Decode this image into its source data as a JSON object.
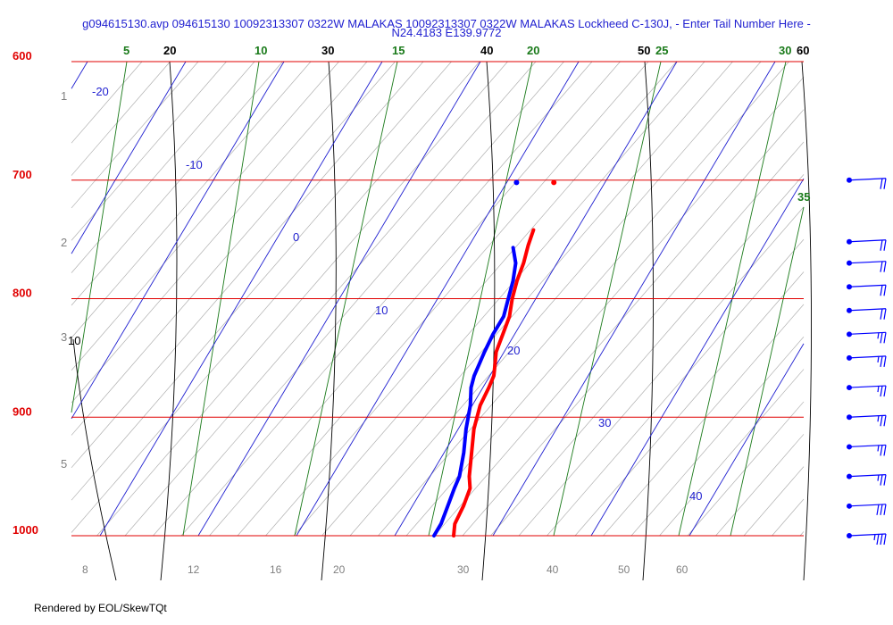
{
  "title": {
    "line1": "g094615130.avp 094615130 10092313307 0322W MALAKAS 10092313307 0322W MALAKAS Lockheed C-130J, - Enter Tail Number Here -",
    "line2": "N24.4183 E139.9772"
  },
  "footer": "Rendered by EOL/SkewTQt",
  "colors": {
    "isobar": "#e00000",
    "dry_adiabat": "#000000",
    "moist_adiabat": "#1a7a1a",
    "isotherm": "#1f1fd0",
    "mixing_ratio": "#888888",
    "temperature": "#ff0000",
    "dewpoint": "#0000ff",
    "height_label": "#808080"
  },
  "chart_data": {
    "type": "skew-t",
    "pressure_range": [
      1000,
      600
    ],
    "isobars": [
      "600",
      "700",
      "800",
      "900",
      "1000"
    ],
    "height_labels": [
      "1",
      "2",
      "3",
      "5"
    ],
    "isotherm_labels": [
      "-20",
      "-10",
      "0",
      "10",
      "20",
      "30",
      "40"
    ],
    "dry_adiabat_labels_top": [
      "20",
      "30",
      "40",
      "50",
      "60"
    ],
    "dry_adiabat_label_left": "10",
    "moist_adiabat_labels_top": [
      "5",
      "10",
      "15",
      "20",
      "25",
      "30"
    ],
    "moist_adiabat_label_right": "35",
    "mixing_ratio_labels": [
      "8",
      "12",
      "16",
      "20",
      "30",
      "40",
      "50",
      "60"
    ],
    "temperature_profile": [
      {
        "p": 1000,
        "t": 26.0
      },
      {
        "p": 990,
        "t": 25.4
      },
      {
        "p": 975,
        "t": 25.2
      },
      {
        "p": 960,
        "t": 24.8
      },
      {
        "p": 950,
        "t": 24.0
      },
      {
        "p": 930,
        "t": 22.8
      },
      {
        "p": 910,
        "t": 21.6
      },
      {
        "p": 890,
        "t": 20.8
      },
      {
        "p": 875,
        "t": 20.6
      },
      {
        "p": 865,
        "t": 20.4
      },
      {
        "p": 855,
        "t": 19.8
      },
      {
        "p": 845,
        "t": 19.2
      },
      {
        "p": 830,
        "t": 18.8
      },
      {
        "p": 815,
        "t": 18.4
      },
      {
        "p": 800,
        "t": 17.6
      },
      {
        "p": 785,
        "t": 17.0
      },
      {
        "p": 770,
        "t": 16.6
      },
      {
        "p": 755,
        "t": 16.0
      },
      {
        "p": 742,
        "t": 15.6
      }
    ],
    "dewpoint_profile": [
      {
        "p": 1000,
        "t": 24.0
      },
      {
        "p": 990,
        "t": 24.0
      },
      {
        "p": 975,
        "t": 23.6
      },
      {
        "p": 960,
        "t": 23.2
      },
      {
        "p": 950,
        "t": 23.0
      },
      {
        "p": 930,
        "t": 22.0
      },
      {
        "p": 910,
        "t": 20.8
      },
      {
        "p": 890,
        "t": 19.8
      },
      {
        "p": 875,
        "t": 18.8
      },
      {
        "p": 865,
        "t": 18.4
      },
      {
        "p": 855,
        "t": 18.2
      },
      {
        "p": 845,
        "t": 18.0
      },
      {
        "p": 830,
        "t": 17.8
      },
      {
        "p": 815,
        "t": 17.8
      },
      {
        "p": 800,
        "t": 17.2
      },
      {
        "p": 785,
        "t": 16.6
      },
      {
        "p": 770,
        "t": 15.8
      },
      {
        "p": 757,
        "t": 14.6
      }
    ],
    "isolated_points": [
      {
        "p": 702,
        "t": 11.0,
        "kind": "dewpoint"
      },
      {
        "p": 702,
        "t": 14.8,
        "kind": "temperature"
      }
    ],
    "wind_barb_levels": [
      "700",
      "752",
      "770",
      "790",
      "810",
      "830",
      "850",
      "875",
      "900",
      "925",
      "950",
      "975",
      "1000"
    ],
    "wind_barb_speeds_kt": [
      20,
      20,
      20,
      20,
      20,
      25,
      25,
      25,
      25,
      25,
      25,
      30,
      35
    ]
  }
}
